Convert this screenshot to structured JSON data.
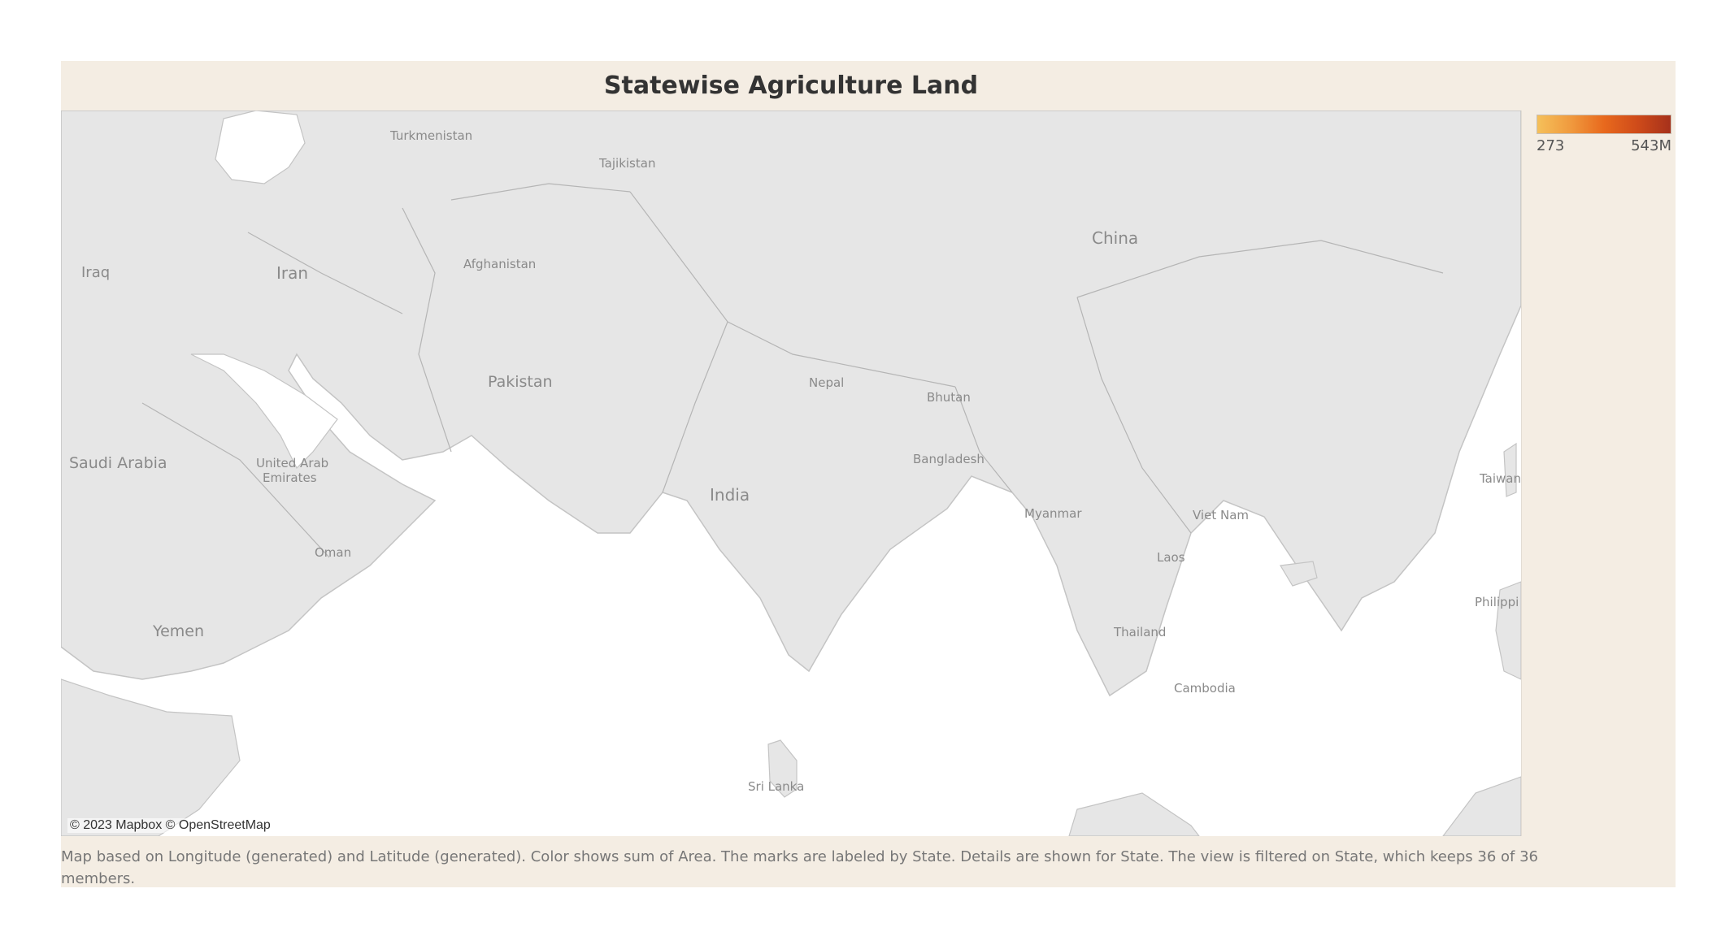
{
  "title": "Statewise Agriculture Land",
  "legend": {
    "min": "273",
    "max": "543M",
    "colors": [
      "#f5c05a",
      "#e8691d",
      "#a6311b"
    ]
  },
  "map": {
    "attribution": "© 2023 Mapbox © OpenStreetMap",
    "labels": {
      "turkmenistan": "Turkmenistan",
      "tajikistan": "Tajikistan",
      "iraq": "Iraq",
      "iran": "Iran",
      "afghanistan": "Afghanistan",
      "china": "China",
      "pakistan": "Pakistan",
      "nepal": "Nepal",
      "bhutan": "Bhutan",
      "saudi_arabia": "Saudi Arabia",
      "uae_line1": "United Arab",
      "uae_line2": "Emirates",
      "bangladesh": "Bangladesh",
      "taiwan": "Taiwan",
      "india": "India",
      "myanmar": "Myanmar",
      "viet_nam": "Viet Nam",
      "oman": "Oman",
      "laos": "Laos",
      "philippines": "Philippi",
      "yemen": "Yemen",
      "thailand": "Thailand",
      "cambodia": "Cambodia",
      "sri_lanka": "Sri Lanka"
    }
  },
  "caption": "Map based on Longitude (generated) and Latitude (generated).  Color shows sum of Area.  The marks are labeled by State.  Details are shown for State. The view is filtered on State, which keeps 36 of 36 members."
}
